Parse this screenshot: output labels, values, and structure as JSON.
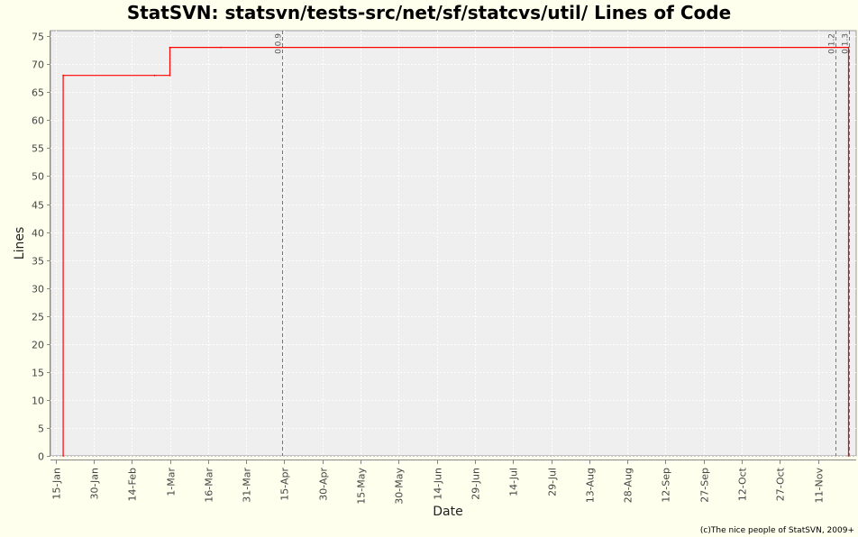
{
  "chart_data": {
    "type": "line",
    "title": "StatSVN: statsvn/tests-src/net/sf/statcvs/util/ Lines of Code",
    "xlabel": "Date",
    "ylabel": "Lines",
    "ylim": [
      0,
      76
    ],
    "xlim": [
      "2009-01-13",
      "2009-11-26"
    ],
    "y_ticks": [
      0,
      5,
      10,
      15,
      20,
      25,
      30,
      35,
      40,
      45,
      50,
      55,
      60,
      65,
      70,
      75
    ],
    "x_ticks": [
      {
        "date": "2009-01-15",
        "label": "15-Jan"
      },
      {
        "date": "2009-01-30",
        "label": "30-Jan"
      },
      {
        "date": "2009-02-14",
        "label": "14-Feb"
      },
      {
        "date": "2009-03-01",
        "label": "1-Mar"
      },
      {
        "date": "2009-03-16",
        "label": "16-Mar"
      },
      {
        "date": "2009-03-31",
        "label": "31-Mar"
      },
      {
        "date": "2009-04-15",
        "label": "15-Apr"
      },
      {
        "date": "2009-04-30",
        "label": "30-Apr"
      },
      {
        "date": "2009-05-15",
        "label": "15-May"
      },
      {
        "date": "2009-05-30",
        "label": "30-May"
      },
      {
        "date": "2009-06-14",
        "label": "14-Jun"
      },
      {
        "date": "2009-06-29",
        "label": "29-Jun"
      },
      {
        "date": "2009-07-14",
        "label": "14-Jul"
      },
      {
        "date": "2009-07-29",
        "label": "29-Jul"
      },
      {
        "date": "2009-08-13",
        "label": "13-Aug"
      },
      {
        "date": "2009-08-28",
        "label": "28-Aug"
      },
      {
        "date": "2009-09-12",
        "label": "12-Sep"
      },
      {
        "date": "2009-09-27",
        "label": "27-Sep"
      },
      {
        "date": "2009-10-12",
        "label": "12-Oct"
      },
      {
        "date": "2009-10-27",
        "label": "27-Oct"
      },
      {
        "date": "2009-11-11",
        "label": "11-Nov"
      }
    ],
    "series": [
      {
        "color": "#ff0000",
        "step": true,
        "points": [
          {
            "x": "2009-01-18",
            "y": 0
          },
          {
            "x": "2009-01-18",
            "y": 68
          },
          {
            "x": "2009-02-23",
            "y": 68
          },
          {
            "x": "2009-03-01",
            "y": 68
          },
          {
            "x": "2009-03-01",
            "y": 73
          },
          {
            "x": "2009-03-21",
            "y": 73
          },
          {
            "x": "2009-11-23",
            "y": 73
          },
          {
            "x": "2009-11-23",
            "y": 0
          }
        ]
      }
    ],
    "markers": [
      {
        "date": "2009-04-14",
        "label": "0.0.9"
      },
      {
        "date": "2009-11-18",
        "label": "0.1.2"
      },
      {
        "date": "2009-11-23",
        "label": "0.1.3"
      }
    ],
    "grid": true,
    "legend": "none"
  },
  "footer": "(c)The nice people of StatSVN, 2009+"
}
